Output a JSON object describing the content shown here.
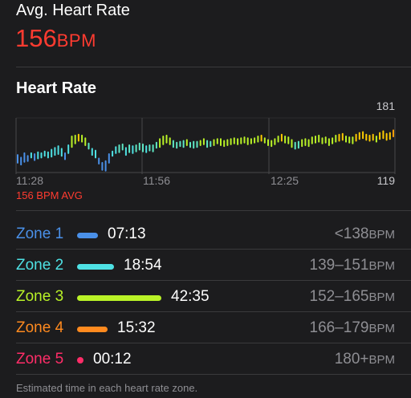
{
  "header": {
    "avg_label": "Avg. Heart Rate",
    "avg_value": "156",
    "avg_unit": "BPM"
  },
  "chart_section": {
    "title": "Heart Rate",
    "avg_note": "156 BPM AVG"
  },
  "chart_data": {
    "type": "bar",
    "title": "Heart Rate",
    "x_ticks": [
      "11:28",
      "11:56",
      "12:25"
    ],
    "y_max_label": "181",
    "y_min_label": "119",
    "ylim": [
      119,
      181
    ],
    "grid": true,
    "series": [
      {
        "values": [
          [
            130,
            139
          ],
          [
            128,
            136
          ],
          [
            131,
            141
          ],
          [
            132,
            138
          ],
          [
            136,
            141
          ],
          [
            133,
            140
          ],
          [
            135,
            142
          ],
          [
            136,
            141
          ],
          [
            138,
            143
          ],
          [
            136,
            142
          ],
          [
            137,
            145
          ],
          [
            139,
            147
          ],
          [
            140,
            149
          ],
          [
            138,
            146
          ],
          [
            134,
            141
          ],
          [
            141,
            150
          ],
          [
            148,
            160
          ],
          [
            152,
            161
          ],
          [
            155,
            162
          ],
          [
            154,
            161
          ],
          [
            150,
            158
          ],
          [
            146,
            152
          ],
          [
            139,
            146
          ],
          [
            136,
            144
          ],
          [
            129,
            135
          ],
          [
            122,
            130
          ],
          [
            121,
            132
          ],
          [
            130,
            140
          ],
          [
            138,
            143
          ],
          [
            141,
            148
          ],
          [
            142,
            150
          ],
          [
            145,
            151
          ],
          [
            139,
            147
          ],
          [
            142,
            150
          ],
          [
            141,
            149
          ],
          [
            143,
            150
          ],
          [
            145,
            152
          ],
          [
            143,
            151
          ],
          [
            142,
            149
          ],
          [
            144,
            150
          ],
          [
            143,
            150
          ],
          [
            147,
            153
          ],
          [
            148,
            157
          ],
          [
            151,
            160
          ],
          [
            153,
            161
          ],
          [
            151,
            158
          ],
          [
            148,
            155
          ],
          [
            147,
            153
          ],
          [
            149,
            154
          ],
          [
            148,
            155
          ],
          [
            150,
            156
          ],
          [
            148,
            153
          ],
          [
            147,
            154
          ],
          [
            148,
            154
          ],
          [
            150,
            155
          ],
          [
            151,
            157
          ],
          [
            148,
            155
          ],
          [
            149,
            154
          ],
          [
            150,
            156
          ],
          [
            152,
            157
          ],
          [
            150,
            157
          ],
          [
            149,
            155
          ],
          [
            150,
            156
          ],
          [
            151,
            157
          ],
          [
            152,
            158
          ],
          [
            151,
            157
          ],
          [
            152,
            158
          ],
          [
            153,
            159
          ],
          [
            151,
            158
          ],
          [
            152,
            157
          ],
          [
            153,
            158
          ],
          [
            154,
            160
          ],
          [
            155,
            161
          ],
          [
            153,
            158
          ],
          [
            150,
            156
          ],
          [
            149,
            155
          ],
          [
            151,
            157
          ],
          [
            154,
            160
          ],
          [
            155,
            162
          ],
          [
            153,
            160
          ],
          [
            152,
            159
          ],
          [
            148,
            156
          ],
          [
            146,
            153
          ],
          [
            147,
            154
          ],
          [
            149,
            156
          ],
          [
            150,
            157
          ],
          [
            149,
            156
          ],
          [
            152,
            159
          ],
          [
            153,
            160
          ],
          [
            154,
            161
          ],
          [
            152,
            158
          ],
          [
            153,
            159
          ],
          [
            150,
            157
          ],
          [
            152,
            158
          ],
          [
            154,
            161
          ],
          [
            155,
            162
          ],
          [
            156,
            163
          ],
          [
            154,
            160
          ],
          [
            153,
            159
          ],
          [
            152,
            159
          ],
          [
            155,
            162
          ],
          [
            157,
            164
          ],
          [
            158,
            165
          ],
          [
            156,
            162
          ],
          [
            155,
            161
          ],
          [
            156,
            162
          ],
          [
            154,
            160
          ],
          [
            157,
            164
          ],
          [
            158,
            166
          ],
          [
            156,
            163
          ],
          [
            157,
            164
          ],
          [
            160,
            167
          ]
        ]
      }
    ]
  },
  "zones": [
    {
      "name": "Zone 1",
      "time": "07:13",
      "range": "<138",
      "unit": "BPM",
      "color": "#4a90e8",
      "fraction": 0.085
    },
    {
      "name": "Zone 2",
      "time": "18:54",
      "range": "139–151",
      "unit": "BPM",
      "color": "#4ee1e4",
      "fraction": 0.22
    },
    {
      "name": "Zone 3",
      "time": "42:35",
      "range": "152–165",
      "unit": "BPM",
      "color": "#b9f227",
      "fraction": 0.5
    },
    {
      "name": "Zone 4",
      "time": "15:32",
      "range": "166–179",
      "unit": "BPM",
      "color": "#ff8a1f",
      "fraction": 0.18
    },
    {
      "name": "Zone 5",
      "time": "00:12",
      "range": "180+",
      "unit": "BPM",
      "color": "#ff2d68",
      "fraction": 0.0
    }
  ],
  "footnote": "Estimated time in each heart rate zone."
}
